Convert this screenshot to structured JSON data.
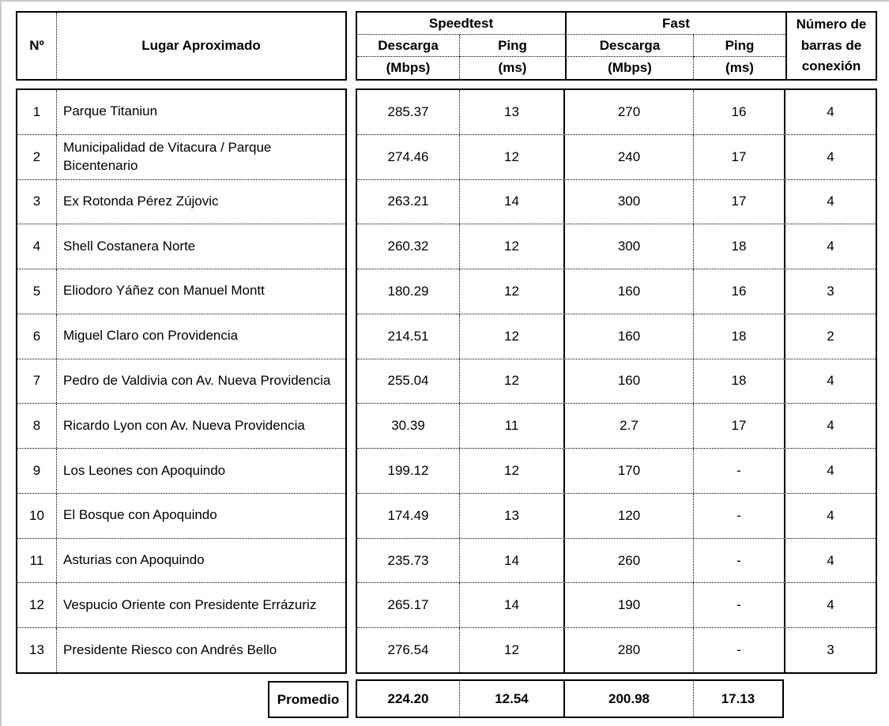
{
  "page": {
    "background": "#ffffff",
    "border_color": "#000000",
    "edge_color": "#c9c9c9"
  },
  "table": {
    "headers": {
      "num": "Nº",
      "place": "Lugar Aproximado",
      "group_speedtest": "Speedtest",
      "group_fast": "Fast",
      "descarga": "Descarga",
      "descarga_unit": "(Mbps)",
      "ping": "Ping",
      "ping_unit": "(ms)",
      "bars": "Número de barras de conexión"
    },
    "rows": [
      {
        "num": "1",
        "place": "Parque Titaniun",
        "st_descarga": "285.37",
        "st_ping": "13",
        "fast_descarga": "270",
        "fast_ping": "16",
        "bars": "4"
      },
      {
        "num": "2",
        "place": "Municipalidad de Vitacura / Parque Bicentenario",
        "st_descarga": "274.46",
        "st_ping": "12",
        "fast_descarga": "240",
        "fast_ping": "17",
        "bars": "4"
      },
      {
        "num": "3",
        "place": "Ex Rotonda Pérez Zújovic",
        "st_descarga": "263.21",
        "st_ping": "14",
        "fast_descarga": "300",
        "fast_ping": "17",
        "bars": "4"
      },
      {
        "num": "4",
        "place": "Shell Costanera Norte",
        "st_descarga": "260.32",
        "st_ping": "12",
        "fast_descarga": "300",
        "fast_ping": "18",
        "bars": "4"
      },
      {
        "num": "5",
        "place": "Eliodoro Yáñez con Manuel Montt",
        "st_descarga": "180.29",
        "st_ping": "12",
        "fast_descarga": "160",
        "fast_ping": "16",
        "bars": "3"
      },
      {
        "num": "6",
        "place": "Miguel Claro con Providencia",
        "st_descarga": "214.51",
        "st_ping": "12",
        "fast_descarga": "160",
        "fast_ping": "18",
        "bars": "2"
      },
      {
        "num": "7",
        "place": "Pedro de Valdivia con Av. Nueva Providencia",
        "st_descarga": "255.04",
        "st_ping": "12",
        "fast_descarga": "160",
        "fast_ping": "18",
        "bars": "4"
      },
      {
        "num": "8",
        "place": "Ricardo Lyon con Av. Nueva Providencia",
        "st_descarga": "30.39",
        "st_ping": "11",
        "fast_descarga": "2.7",
        "fast_ping": "17",
        "bars": "4"
      },
      {
        "num": "9",
        "place": "Los Leones con Apoquindo",
        "st_descarga": "199.12",
        "st_ping": "12",
        "fast_descarga": "170",
        "fast_ping": "-",
        "bars": "4"
      },
      {
        "num": "10",
        "place": "El Bosque con Apoquindo",
        "st_descarga": "174.49",
        "st_ping": "13",
        "fast_descarga": "120",
        "fast_ping": "-",
        "bars": "4"
      },
      {
        "num": "11",
        "place": "Asturias con Apoquindo",
        "st_descarga": "235.73",
        "st_ping": "14",
        "fast_descarga": "260",
        "fast_ping": "-",
        "bars": "4"
      },
      {
        "num": "12",
        "place": "Vespucio Oriente con Presidente Errázuriz",
        "st_descarga": "265.17",
        "st_ping": "14",
        "fast_descarga": "190",
        "fast_ping": "-",
        "bars": "4"
      },
      {
        "num": "13",
        "place": "Presidente Riesco con Andrés Bello",
        "st_descarga": "276.54",
        "st_ping": "12",
        "fast_descarga": "280",
        "fast_ping": "-",
        "bars": "3"
      }
    ],
    "footer": {
      "label": "Promedio",
      "st_descarga": "224.20",
      "st_ping": "12.54",
      "fast_descarga": "200.98",
      "fast_ping": "17.13"
    }
  }
}
